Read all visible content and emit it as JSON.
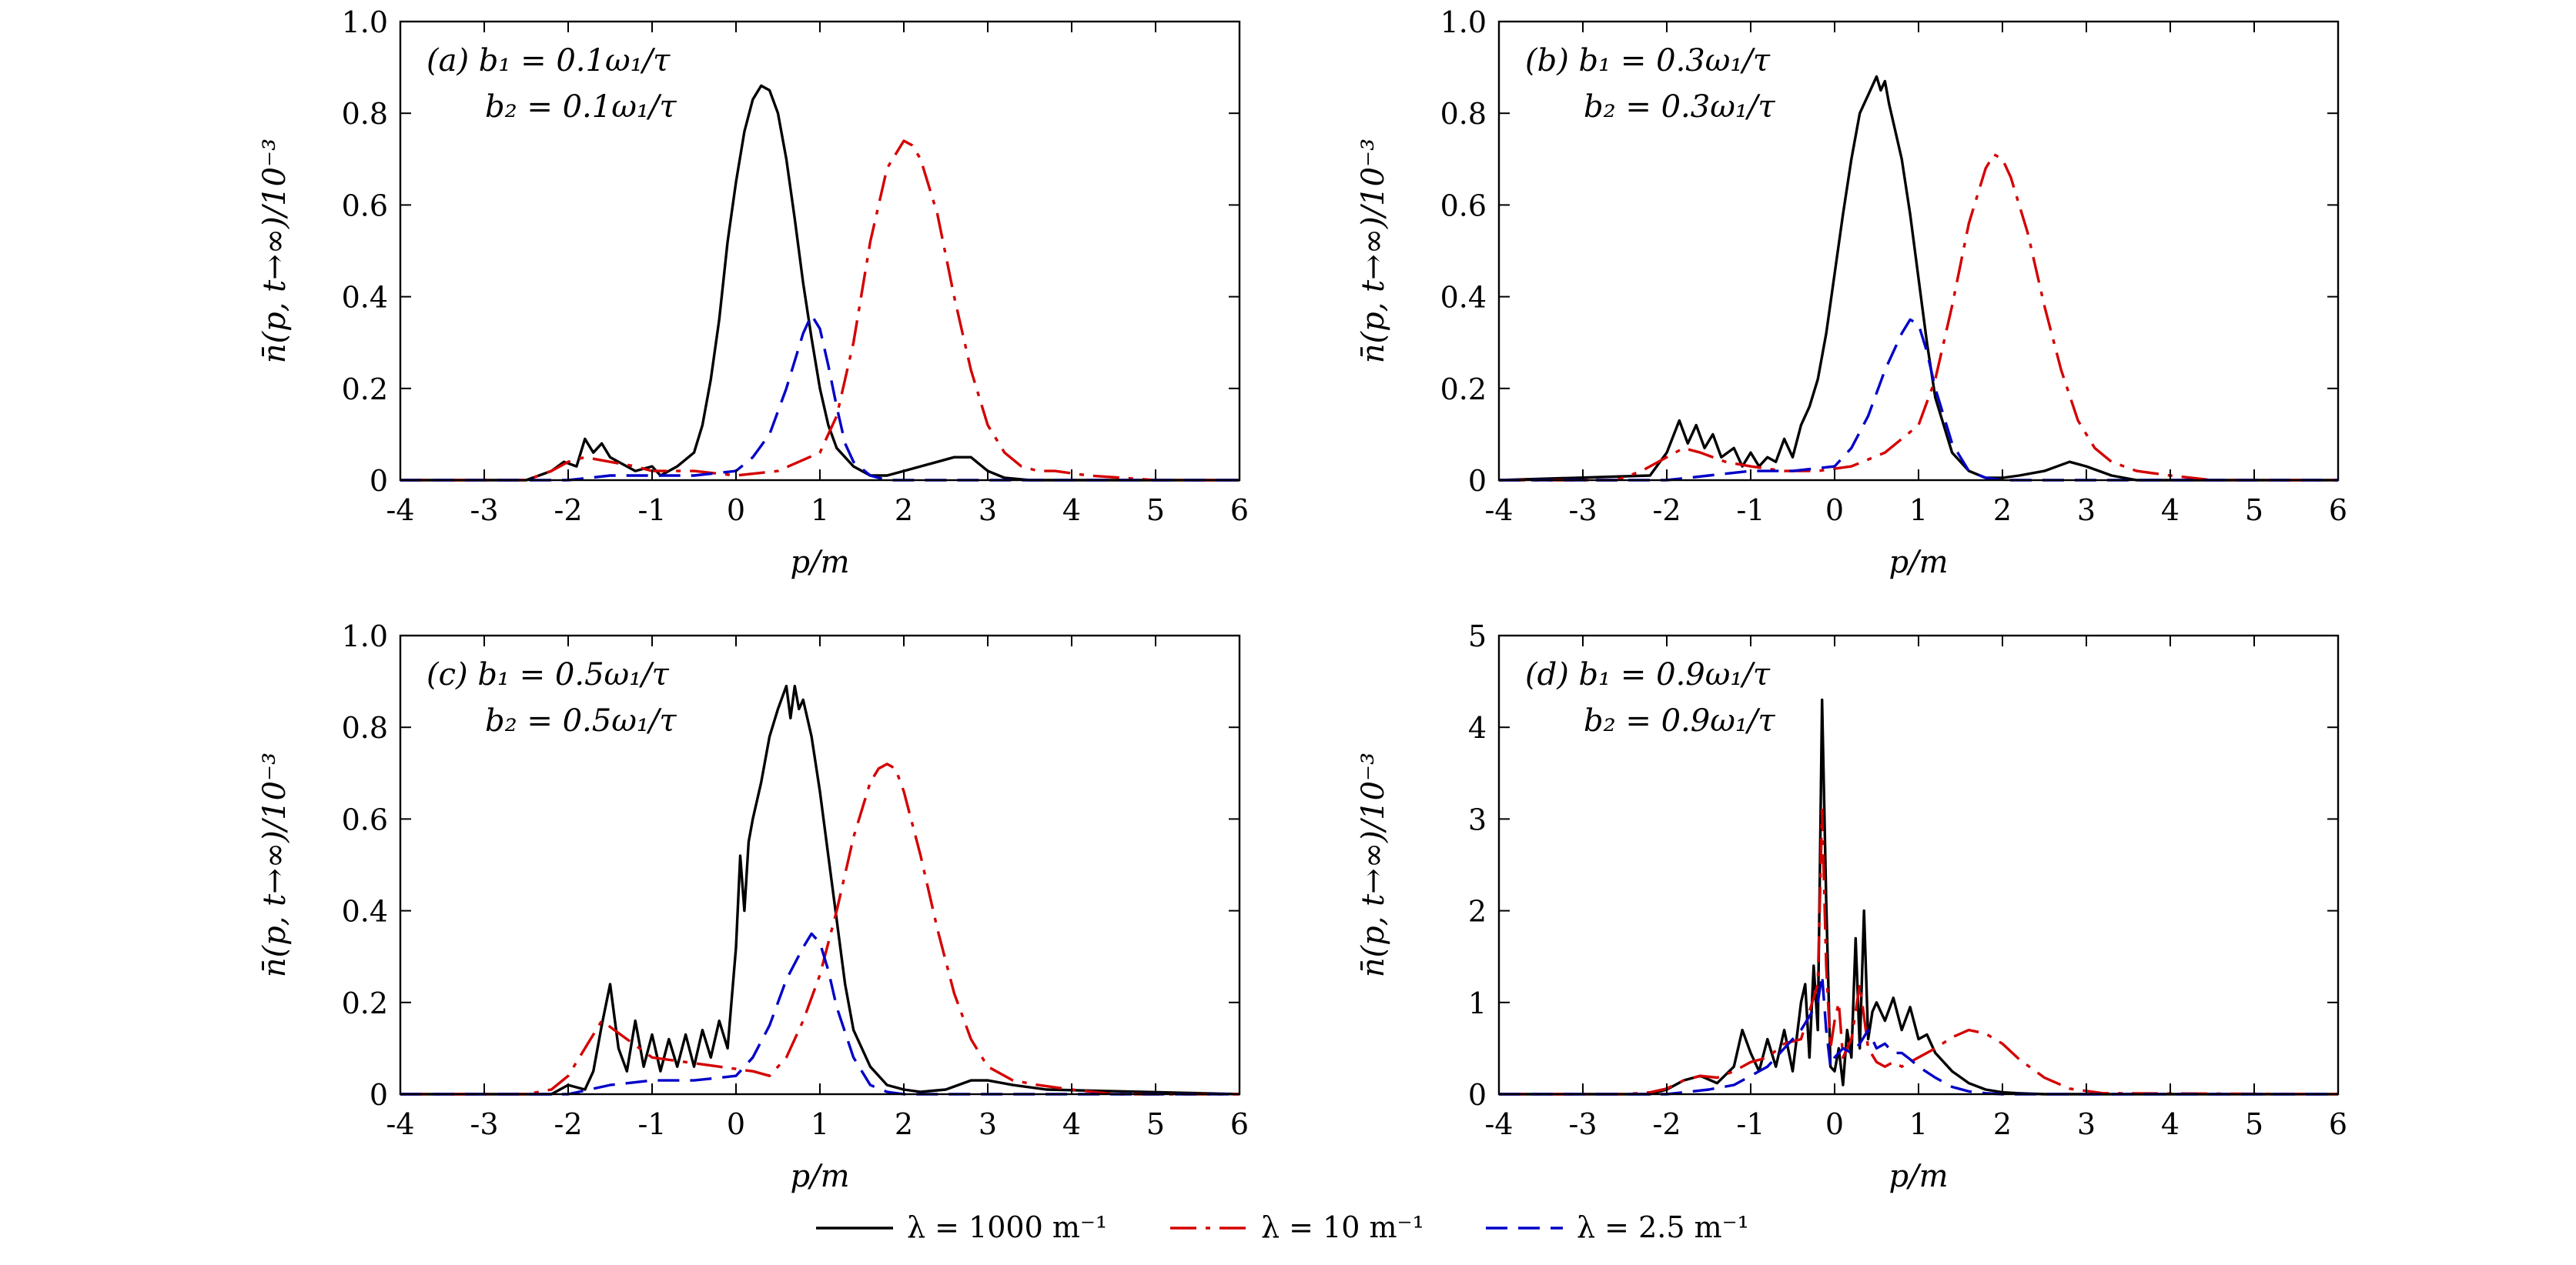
{
  "figure": {
    "legend": [
      {
        "label": "λ = 1000 m⁻¹",
        "color": "#000000",
        "dash": "solid"
      },
      {
        "label": "λ = 10 m⁻¹",
        "color": "#d40000",
        "dash": "dashdot"
      },
      {
        "label": "λ = 2.5 m⁻¹",
        "color": "#0000c8",
        "dash": "dashed"
      }
    ]
  },
  "chart_data": [
    {
      "type": "line",
      "panel_label": "(a)",
      "annotation_line1": "b₁ = 0.1ω₁/τ",
      "annotation_line2": "b₂ = 0.1ω₁/τ",
      "xlabel": "p/m",
      "ylabel": "n̄(p, t→∞)/10⁻³",
      "xlim": [
        -4,
        6
      ],
      "ylim": [
        0,
        1.0
      ],
      "xticks": [
        -4,
        -3,
        -2,
        -1,
        0,
        1,
        2,
        3,
        4,
        5,
        6
      ],
      "yticks": [
        "0",
        "0.2",
        "0.4",
        "0.6",
        "0.8",
        "1.0"
      ],
      "series": [
        {
          "name": "λ = 1000 m⁻¹",
          "x": [
            -4,
            -2.5,
            -2.2,
            -2.05,
            -1.9,
            -1.8,
            -1.7,
            -1.6,
            -1.5,
            -1.4,
            -1.2,
            -1.0,
            -0.9,
            -0.7,
            -0.5,
            -0.4,
            -0.3,
            -0.2,
            -0.1,
            0,
            0.1,
            0.2,
            0.3,
            0.4,
            0.5,
            0.6,
            0.7,
            0.8,
            0.9,
            1.0,
            1.1,
            1.2,
            1.4,
            1.6,
            1.8,
            2.0,
            2.2,
            2.4,
            2.6,
            2.8,
            3.0,
            3.2,
            3.5,
            6
          ],
          "y": [
            0,
            0,
            0.02,
            0.04,
            0.03,
            0.09,
            0.06,
            0.08,
            0.05,
            0.04,
            0.02,
            0.03,
            0.01,
            0.03,
            0.06,
            0.12,
            0.22,
            0.35,
            0.52,
            0.65,
            0.76,
            0.83,
            0.86,
            0.85,
            0.8,
            0.7,
            0.57,
            0.43,
            0.31,
            0.2,
            0.12,
            0.07,
            0.03,
            0.01,
            0.01,
            0.02,
            0.03,
            0.04,
            0.05,
            0.05,
            0.02,
            0.005,
            0,
            0
          ]
        },
        {
          "name": "λ = 10 m⁻¹",
          "x": [
            -4,
            -2.5,
            -2.2,
            -2.0,
            -1.8,
            -1.5,
            -1.2,
            -1.0,
            -0.5,
            0,
            0.5,
            1.0,
            1.2,
            1.4,
            1.6,
            1.8,
            2.0,
            2.1,
            2.2,
            2.4,
            2.6,
            2.8,
            3.0,
            3.2,
            3.4,
            3.6,
            3.8,
            4.2,
            5,
            6
          ],
          "y": [
            0,
            0,
            0.02,
            0.04,
            0.05,
            0.04,
            0.03,
            0.02,
            0.02,
            0.01,
            0.02,
            0.06,
            0.14,
            0.3,
            0.52,
            0.68,
            0.74,
            0.73,
            0.7,
            0.58,
            0.4,
            0.24,
            0.12,
            0.06,
            0.03,
            0.02,
            0.02,
            0.01,
            0,
            0
          ]
        },
        {
          "name": "λ = 2.5 m⁻¹",
          "x": [
            -4,
            -2.0,
            -1.5,
            -1.0,
            -0.5,
            0,
            0.2,
            0.4,
            0.6,
            0.8,
            0.9,
            1.0,
            1.1,
            1.2,
            1.3,
            1.4,
            1.6,
            1.8,
            2.0,
            6
          ],
          "y": [
            0,
            0,
            0.01,
            0.01,
            0.01,
            0.02,
            0.05,
            0.1,
            0.2,
            0.32,
            0.36,
            0.33,
            0.25,
            0.16,
            0.08,
            0.04,
            0.01,
            0,
            0,
            0
          ]
        }
      ]
    },
    {
      "type": "line",
      "panel_label": "(b)",
      "annotation_line1": "b₁ = 0.3ω₁/τ",
      "annotation_line2": "b₂ = 0.3ω₁/τ",
      "xlabel": "p/m",
      "ylabel": "n̄(p, t→∞)/10⁻³",
      "xlim": [
        -4,
        6
      ],
      "ylim": [
        0,
        1.0
      ],
      "xticks": [
        -4,
        -3,
        -2,
        -1,
        0,
        1,
        2,
        3,
        4,
        5,
        6
      ],
      "yticks": [
        "0",
        "0.2",
        "0.4",
        "0.6",
        "0.8",
        "1.0"
      ],
      "series": [
        {
          "name": "λ = 1000 m⁻¹",
          "x": [
            -4,
            -2.2,
            -2.0,
            -1.85,
            -1.75,
            -1.65,
            -1.55,
            -1.45,
            -1.35,
            -1.2,
            -1.1,
            -1.0,
            -0.9,
            -0.8,
            -0.7,
            -0.6,
            -0.5,
            -0.4,
            -0.3,
            -0.2,
            -0.1,
            0,
            0.1,
            0.2,
            0.3,
            0.4,
            0.5,
            0.55,
            0.6,
            0.65,
            0.7,
            0.8,
            0.9,
            1.0,
            1.1,
            1.2,
            1.4,
            1.6,
            1.8,
            2.0,
            2.2,
            2.5,
            2.8,
            3.0,
            3.3,
            3.6,
            6
          ],
          "y": [
            0,
            0.01,
            0.06,
            0.13,
            0.08,
            0.12,
            0.07,
            0.1,
            0.05,
            0.07,
            0.03,
            0.06,
            0.03,
            0.05,
            0.04,
            0.09,
            0.05,
            0.12,
            0.16,
            0.22,
            0.32,
            0.45,
            0.58,
            0.7,
            0.8,
            0.84,
            0.88,
            0.85,
            0.87,
            0.82,
            0.78,
            0.7,
            0.58,
            0.44,
            0.3,
            0.18,
            0.06,
            0.02,
            0.005,
            0.005,
            0.01,
            0.02,
            0.04,
            0.03,
            0.01,
            0,
            0
          ]
        },
        {
          "name": "λ = 10 m⁻¹",
          "x": [
            -4,
            -2.6,
            -2.3,
            -2.0,
            -1.8,
            -1.6,
            -1.3,
            -1.0,
            -0.6,
            -0.2,
            0.2,
            0.6,
            1.0,
            1.2,
            1.4,
            1.6,
            1.8,
            1.9,
            2.0,
            2.1,
            2.3,
            2.5,
            2.7,
            2.9,
            3.1,
            3.3,
            3.6,
            4.0,
            4.5,
            6
          ],
          "y": [
            0,
            0,
            0.02,
            0.05,
            0.07,
            0.06,
            0.04,
            0.03,
            0.02,
            0.02,
            0.03,
            0.06,
            0.12,
            0.22,
            0.38,
            0.56,
            0.68,
            0.71,
            0.7,
            0.66,
            0.54,
            0.38,
            0.24,
            0.13,
            0.07,
            0.04,
            0.02,
            0.01,
            0,
            0
          ]
        },
        {
          "name": "λ = 2.5 m⁻¹",
          "x": [
            -4,
            -2.0,
            -1.5,
            -1.0,
            -0.5,
            0,
            0.2,
            0.4,
            0.6,
            0.8,
            0.9,
            1.0,
            1.1,
            1.2,
            1.4,
            1.6,
            1.8,
            2.0,
            6
          ],
          "y": [
            0,
            0,
            0.01,
            0.02,
            0.02,
            0.03,
            0.07,
            0.14,
            0.24,
            0.32,
            0.35,
            0.34,
            0.28,
            0.2,
            0.08,
            0.02,
            0.005,
            0,
            0
          ]
        }
      ]
    },
    {
      "type": "line",
      "panel_label": "(c)",
      "annotation_line1": "b₁ = 0.5ω₁/τ",
      "annotation_line2": "b₂ = 0.5ω₁/τ",
      "xlabel": "p/m",
      "ylabel": "n̄(p, t→∞)/10⁻³",
      "xlim": [
        -4,
        6
      ],
      "ylim": [
        0,
        1.0
      ],
      "xticks": [
        -4,
        -3,
        -2,
        -1,
        0,
        1,
        2,
        3,
        4,
        5,
        6
      ],
      "yticks": [
        "0",
        "0.2",
        "0.4",
        "0.6",
        "0.8",
        "1.0"
      ],
      "series": [
        {
          "name": "λ = 1000 m⁻¹",
          "x": [
            -4,
            -2.2,
            -2.0,
            -1.8,
            -1.7,
            -1.6,
            -1.5,
            -1.4,
            -1.3,
            -1.2,
            -1.1,
            -1.0,
            -0.9,
            -0.8,
            -0.7,
            -0.6,
            -0.5,
            -0.4,
            -0.3,
            -0.2,
            -0.1,
            0,
            0.05,
            0.1,
            0.15,
            0.2,
            0.3,
            0.4,
            0.5,
            0.6,
            0.65,
            0.7,
            0.75,
            0.8,
            0.9,
            1.0,
            1.1,
            1.2,
            1.3,
            1.4,
            1.6,
            1.8,
            2.0,
            2.2,
            2.5,
            2.8,
            3.0,
            3.3,
            3.7,
            6
          ],
          "y": [
            0,
            0,
            0.02,
            0.01,
            0.05,
            0.15,
            0.24,
            0.1,
            0.05,
            0.16,
            0.06,
            0.13,
            0.05,
            0.12,
            0.06,
            0.13,
            0.06,
            0.14,
            0.08,
            0.16,
            0.1,
            0.32,
            0.52,
            0.4,
            0.55,
            0.6,
            0.68,
            0.78,
            0.84,
            0.89,
            0.82,
            0.89,
            0.84,
            0.86,
            0.78,
            0.66,
            0.52,
            0.38,
            0.24,
            0.14,
            0.06,
            0.02,
            0.01,
            0.005,
            0.01,
            0.03,
            0.03,
            0.02,
            0.01,
            0
          ]
        },
        {
          "name": "λ = 10 m⁻¹",
          "x": [
            -4,
            -2.5,
            -2.2,
            -2.0,
            -1.8,
            -1.6,
            -1.3,
            -1.0,
            -0.6,
            -0.2,
            0.2,
            0.4,
            0.6,
            0.8,
            1.0,
            1.2,
            1.4,
            1.6,
            1.7,
            1.8,
            1.9,
            2.0,
            2.2,
            2.4,
            2.6,
            2.8,
            3.0,
            3.3,
            3.6,
            4.0,
            4.5,
            6
          ],
          "y": [
            0,
            0,
            0.01,
            0.04,
            0.1,
            0.16,
            0.12,
            0.08,
            0.07,
            0.06,
            0.05,
            0.04,
            0.08,
            0.16,
            0.26,
            0.4,
            0.56,
            0.68,
            0.71,
            0.72,
            0.71,
            0.66,
            0.52,
            0.36,
            0.22,
            0.12,
            0.06,
            0.03,
            0.02,
            0.01,
            0,
            0
          ]
        },
        {
          "name": "λ = 2.5 m⁻¹",
          "x": [
            -4,
            -2.0,
            -1.5,
            -1.0,
            -0.5,
            0,
            0.2,
            0.4,
            0.6,
            0.8,
            0.9,
            1.0,
            1.1,
            1.2,
            1.4,
            1.6,
            1.8,
            2.0,
            6
          ],
          "y": [
            0,
            0,
            0.02,
            0.03,
            0.03,
            0.04,
            0.08,
            0.15,
            0.25,
            0.32,
            0.35,
            0.33,
            0.27,
            0.19,
            0.08,
            0.02,
            0.005,
            0,
            0
          ]
        }
      ]
    },
    {
      "type": "line",
      "panel_label": "(d)",
      "annotation_line1": "b₁ = 0.9ω₁/τ",
      "annotation_line2": "b₂ = 0.9ω₁/τ",
      "xlabel": "p/m",
      "ylabel": "n̄(p, t→∞)/10⁻³",
      "xlim": [
        -4,
        6
      ],
      "ylim": [
        0,
        5
      ],
      "xticks": [
        -4,
        -3,
        -2,
        -1,
        0,
        1,
        2,
        3,
        4,
        5,
        6
      ],
      "yticks": [
        "0",
        "1",
        "2",
        "3",
        "4",
        "5"
      ],
      "series": [
        {
          "name": "λ = 1000 m⁻¹",
          "x": [
            -4,
            -2.2,
            -2.0,
            -1.8,
            -1.6,
            -1.4,
            -1.2,
            -1.1,
            -1.0,
            -0.9,
            -0.8,
            -0.7,
            -0.6,
            -0.5,
            -0.4,
            -0.35,
            -0.3,
            -0.25,
            -0.2,
            -0.15,
            -0.1,
            -0.05,
            0,
            0.05,
            0.1,
            0.15,
            0.2,
            0.25,
            0.3,
            0.35,
            0.4,
            0.45,
            0.5,
            0.6,
            0.7,
            0.8,
            0.9,
            1.0,
            1.1,
            1.2,
            1.4,
            1.6,
            1.8,
            2.0,
            2.2,
            2.5,
            3.0,
            6
          ],
          "y": [
            0,
            0,
            0.05,
            0.15,
            0.2,
            0.12,
            0.3,
            0.7,
            0.45,
            0.25,
            0.6,
            0.3,
            0.7,
            0.25,
            1.0,
            1.2,
            0.4,
            1.4,
            0.7,
            4.3,
            2.1,
            0.3,
            0.25,
            0.5,
            0.1,
            0.7,
            0.4,
            1.7,
            0.5,
            2.0,
            0.6,
            0.9,
            1.0,
            0.8,
            1.05,
            0.7,
            0.95,
            0.6,
            0.65,
            0.45,
            0.25,
            0.12,
            0.05,
            0.02,
            0.01,
            0,
            0,
            0
          ]
        },
        {
          "name": "λ = 10 m⁻¹",
          "x": [
            -4,
            -2.5,
            -2.2,
            -2.0,
            -1.8,
            -1.6,
            -1.4,
            -1.2,
            -1.0,
            -0.8,
            -0.6,
            -0.4,
            -0.3,
            -0.2,
            -0.15,
            -0.1,
            -0.05,
            0,
            0.05,
            0.1,
            0.2,
            0.3,
            0.4,
            0.5,
            0.6,
            0.7,
            0.8,
            0.9,
            1.0,
            1.2,
            1.4,
            1.6,
            1.8,
            2.0,
            2.2,
            2.5,
            2.8,
            3.2,
            6
          ],
          "y": [
            0,
            0,
            0.02,
            0.06,
            0.15,
            0.2,
            0.18,
            0.25,
            0.35,
            0.4,
            0.55,
            0.6,
            0.9,
            1.2,
            3.1,
            1.4,
            0.5,
            0.8,
            1.0,
            0.4,
            0.6,
            1.2,
            0.5,
            0.35,
            0.3,
            0.35,
            0.3,
            0.35,
            0.4,
            0.5,
            0.62,
            0.7,
            0.66,
            0.55,
            0.38,
            0.18,
            0.06,
            0.01,
            0
          ]
        },
        {
          "name": "λ = 2.5 m⁻¹",
          "x": [
            -4,
            -2.0,
            -1.5,
            -1.2,
            -1.0,
            -0.8,
            -0.6,
            -0.4,
            -0.3,
            -0.2,
            -0.15,
            -0.1,
            -0.05,
            0,
            0.1,
            0.2,
            0.3,
            0.4,
            0.5,
            0.6,
            0.7,
            0.8,
            0.9,
            1.0,
            1.2,
            1.4,
            1.6,
            1.8,
            2.0,
            6
          ],
          "y": [
            0,
            0,
            0.05,
            0.1,
            0.2,
            0.3,
            0.5,
            0.7,
            0.85,
            1.0,
            1.3,
            0.7,
            0.3,
            0.4,
            0.5,
            0.45,
            0.55,
            0.7,
            0.5,
            0.55,
            0.45,
            0.45,
            0.38,
            0.3,
            0.18,
            0.08,
            0.03,
            0.01,
            0,
            0
          ]
        }
      ]
    }
  ]
}
